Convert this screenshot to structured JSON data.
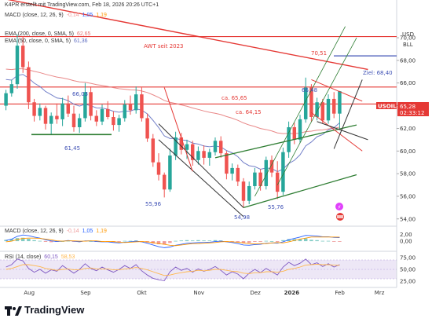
{
  "header": {
    "credit": "K4PR erstellt mit TradingView.com, Feb 18, 2026 20:26 UTC+1",
    "macd_top": {
      "label": "MACD (close, 12, 26, 9)",
      "v1": "-0,14",
      "v2": "1,05",
      "v3": "1,19"
    },
    "ema200": {
      "label": "EMA (200, close, 0, SMA, 5)",
      "value": "62,65"
    },
    "ema50": {
      "label": "EMA (50, close, 0, SMA, 5)",
      "value": "61,36"
    }
  },
  "currency": "USD",
  "unit": "BLL",
  "symbol": {
    "name": "USOIL",
    "price": "65,28",
    "countdown": "02:33:12"
  },
  "brand": "TradingView",
  "colors": {
    "up": "#26a69a",
    "down": "#ef5350",
    "ema200": "#e57373",
    "ema50": "#5c6bc0",
    "resistance": "#e53935",
    "support": "#2e7d32",
    "target": "#3f51b5",
    "rsi": "#7e57c2",
    "macd": "#2962ff",
    "signal": "#ff9800"
  },
  "chart_data": [
    {
      "type": "candlestick",
      "title": "USOIL",
      "x_ticks": [
        "Aug",
        "Sep",
        "Okt",
        "Nov",
        "Dez",
        "2026",
        "Feb",
        "Mrz"
      ],
      "y_ticks": [
        "70,00",
        "68,00",
        "66,00",
        "64,00",
        "62,00",
        "60,00",
        "58,00",
        "56,00",
        "54,00"
      ],
      "ylim": [
        53.5,
        72.5
      ],
      "last_price": 65.28,
      "annotations": {
        "awt": "AWT seit 2023",
        "level_7051": "70,51",
        "target": "Ziel: 68,40",
        "level_6648": "66,48",
        "level_6603": "66,03",
        "level_6565": "ca. 65,65",
        "level_6415": "ca. 64,15",
        "level_6145": "61,45",
        "level_5596": "55,96",
        "level_5498": "54,98",
        "level_5576": "55,76"
      },
      "levels": {
        "horizontal_resistance": [
          70.1,
          65.65,
          64.15
        ],
        "support_line": 61.45,
        "target": 68.4
      },
      "ohlc": [
        [
          64.0,
          65.4,
          63.6,
          65.1
        ],
        [
          65.1,
          66.3,
          64.8,
          65.9
        ],
        [
          65.9,
          70.3,
          65.5,
          69.3
        ],
        [
          69.3,
          70.1,
          66.9,
          67.4
        ],
        [
          67.4,
          67.9,
          63.7,
          64.3
        ],
        [
          64.3,
          64.6,
          62.6,
          63.1
        ],
        [
          63.1,
          64.2,
          62.7,
          63.8
        ],
        [
          63.8,
          64.0,
          61.9,
          62.4
        ],
        [
          62.4,
          63.4,
          61.5,
          63.1
        ],
        [
          63.1,
          64.2,
          62.4,
          62.8
        ],
        [
          62.8,
          64.7,
          62.2,
          64.2
        ],
        [
          64.2,
          64.9,
          63.0,
          63.3
        ],
        [
          63.3,
          64.0,
          61.7,
          62.1
        ],
        [
          62.1,
          63.3,
          61.6,
          62.9
        ],
        [
          62.9,
          66.0,
          62.6,
          65.2
        ],
        [
          65.2,
          65.7,
          62.7,
          63.1
        ],
        [
          63.1,
          63.6,
          62.2,
          62.6
        ],
        [
          62.6,
          64.1,
          62.3,
          63.7
        ],
        [
          63.7,
          64.4,
          62.8,
          63.0
        ],
        [
          63.0,
          63.5,
          61.8,
          62.3
        ],
        [
          62.3,
          63.2,
          61.7,
          62.9
        ],
        [
          62.9,
          64.5,
          62.6,
          64.1
        ],
        [
          64.1,
          64.9,
          63.2,
          63.6
        ],
        [
          63.6,
          65.7,
          63.3,
          65.0
        ],
        [
          65.0,
          65.6,
          62.6,
          62.9
        ],
        [
          62.9,
          63.3,
          60.8,
          61.1
        ],
        [
          61.1,
          61.5,
          58.6,
          59.0
        ],
        [
          59.0,
          59.8,
          57.4,
          57.9
        ],
        [
          57.9,
          58.1,
          55.9,
          56.6
        ],
        [
          56.6,
          60.2,
          56.4,
          59.6
        ],
        [
          59.6,
          61.7,
          59.2,
          61.2
        ],
        [
          61.2,
          61.6,
          59.7,
          60.1
        ],
        [
          60.1,
          61.0,
          59.3,
          60.6
        ],
        [
          60.6,
          60.9,
          58.7,
          59.2
        ],
        [
          59.2,
          60.4,
          58.8,
          60.0
        ],
        [
          60.0,
          60.5,
          58.8,
          59.4
        ],
        [
          59.4,
          60.2,
          58.7,
          59.9
        ],
        [
          59.9,
          61.2,
          59.6,
          60.9
        ],
        [
          60.9,
          61.3,
          59.4,
          59.8
        ],
        [
          59.8,
          60.0,
          57.5,
          58.0
        ],
        [
          58.0,
          58.9,
          57.4,
          58.5
        ],
        [
          58.5,
          58.8,
          56.9,
          57.3
        ],
        [
          57.3,
          57.6,
          54.98,
          55.6
        ],
        [
          55.6,
          57.3,
          55.3,
          56.9
        ],
        [
          56.9,
          58.5,
          56.6,
          58.1
        ],
        [
          58.1,
          58.4,
          56.5,
          56.9
        ],
        [
          56.9,
          59.5,
          56.6,
          59.2
        ],
        [
          59.2,
          59.6,
          57.7,
          58.1
        ],
        [
          58.1,
          59.1,
          55.76,
          56.4
        ],
        [
          56.4,
          60.3,
          56.1,
          59.9
        ],
        [
          59.9,
          62.6,
          59.4,
          62.1
        ],
        [
          62.1,
          62.5,
          60.6,
          61.0
        ],
        [
          61.0,
          63.2,
          60.7,
          62.8
        ],
        [
          62.8,
          66.48,
          62.5,
          65.6
        ],
        [
          65.6,
          65.9,
          62.6,
          63.0
        ],
        [
          63.0,
          64.7,
          62.7,
          64.3
        ],
        [
          64.3,
          64.6,
          62.4,
          62.7
        ],
        [
          62.7,
          65.0,
          62.4,
          64.6
        ],
        [
          64.6,
          65.2,
          62.9,
          63.3
        ],
        [
          63.3,
          65.3,
          61.9,
          65.28
        ]
      ]
    },
    {
      "type": "bar",
      "title": "MACD (close, 12, 26, 9)",
      "values_text": [
        "-0,14",
        "1,05",
        "1,19"
      ],
      "y_ticks": [
        "2,00",
        "0,00"
      ],
      "ylim": [
        -2.5,
        3.0
      ],
      "histogram": [
        0.4,
        0.6,
        0.9,
        1.0,
        0.7,
        0.3,
        0.1,
        -0.2,
        -0.3,
        -0.2,
        0.0,
        0.1,
        -0.1,
        -0.2,
        0.1,
        0.0,
        -0.2,
        -0.1,
        -0.1,
        -0.3,
        -0.2,
        0.1,
        0.1,
        0.2,
        -0.1,
        -0.4,
        -0.7,
        -0.9,
        -1.0,
        -0.5,
        0.1,
        0.2,
        0.3,
        0.2,
        0.3,
        0.2,
        0.2,
        0.3,
        0.2,
        -0.1,
        -0.2,
        -0.4,
        -0.6,
        -0.5,
        -0.2,
        -0.2,
        0.1,
        0.0,
        -0.2,
        0.3,
        0.6,
        0.6,
        0.6,
        0.8,
        0.4,
        0.3,
        0.1,
        0.1,
        -0.1,
        -0.14
      ],
      "series": [
        {
          "values": [
            0.2,
            0.6,
            1.4,
            1.8,
            1.6,
            1.2,
            0.9,
            0.4,
            0.1,
            -0.1,
            0.0,
            0.2,
            0.0,
            -0.2,
            0.1,
            0.1,
            -0.1,
            -0.2,
            -0.2,
            -0.4,
            -0.5,
            -0.3,
            -0.2,
            0.0,
            -0.2,
            -0.6,
            -1.1,
            -1.6,
            -1.9,
            -1.7,
            -1.2,
            -0.9,
            -0.6,
            -0.5,
            -0.4,
            -0.4,
            -0.3,
            -0.1,
            0.0,
            -0.2,
            -0.4,
            -0.7,
            -1.1,
            -1.2,
            -1.0,
            -0.9,
            -0.6,
            -0.5,
            -0.6,
            -0.2,
            0.4,
            0.8,
            1.2,
            1.7,
            1.6,
            1.5,
            1.3,
            1.3,
            1.1,
            1.05
          ]
        },
        {
          "values": [
            -0.2,
            0.0,
            0.5,
            0.8,
            0.9,
            0.9,
            0.8,
            0.6,
            0.4,
            0.1,
            0.0,
            0.1,
            0.1,
            0.0,
            0.0,
            0.1,
            0.1,
            -0.1,
            -0.1,
            -0.1,
            -0.3,
            -0.4,
            -0.3,
            -0.2,
            -0.1,
            -0.2,
            -0.4,
            -0.7,
            -0.9,
            -1.2,
            -1.3,
            -1.1,
            -0.9,
            -0.7,
            -0.7,
            -0.6,
            -0.5,
            -0.4,
            -0.2,
            -0.1,
            -0.2,
            -0.3,
            -0.5,
            -0.7,
            -0.8,
            -0.7,
            -0.7,
            -0.5,
            -0.4,
            -0.5,
            -0.2,
            0.2,
            0.6,
            0.9,
            1.2,
            1.2,
            1.2,
            1.2,
            1.2,
            1.19
          ]
        }
      ]
    },
    {
      "type": "line",
      "title": "RSI (14, close)",
      "values_text": [
        "60,15",
        "58,53"
      ],
      "y_ticks": [
        "75,00",
        "50,00",
        "25,00"
      ],
      "ylim": [
        15,
        85
      ],
      "band": [
        30,
        70
      ],
      "series": [
        {
          "values": [
            55,
            60,
            72,
            68,
            52,
            44,
            50,
            42,
            49,
            46,
            58,
            50,
            42,
            50,
            62,
            52,
            47,
            55,
            49,
            44,
            50,
            58,
            52,
            60,
            47,
            38,
            31,
            28,
            26,
            45,
            55,
            48,
            52,
            44,
            51,
            46,
            50,
            56,
            48,
            38,
            45,
            40,
            30,
            42,
            50,
            43,
            52,
            45,
            38,
            55,
            65,
            58,
            63,
            72,
            60,
            64,
            56,
            62,
            55,
            60.15
          ]
        },
        {
          "values": [
            50,
            52,
            56,
            60,
            60,
            58,
            56,
            52,
            50,
            48,
            50,
            51,
            49,
            49,
            52,
            53,
            51,
            51,
            51,
            49,
            49,
            51,
            52,
            54,
            52,
            49,
            45,
            41,
            37,
            38,
            41,
            43,
            45,
            46,
            48,
            47,
            48,
            50,
            50,
            48,
            46,
            45,
            42,
            41,
            43,
            43,
            45,
            45,
            44,
            46,
            50,
            52,
            55,
            59,
            60,
            61,
            60,
            60,
            59,
            58.53
          ]
        }
      ]
    }
  ]
}
